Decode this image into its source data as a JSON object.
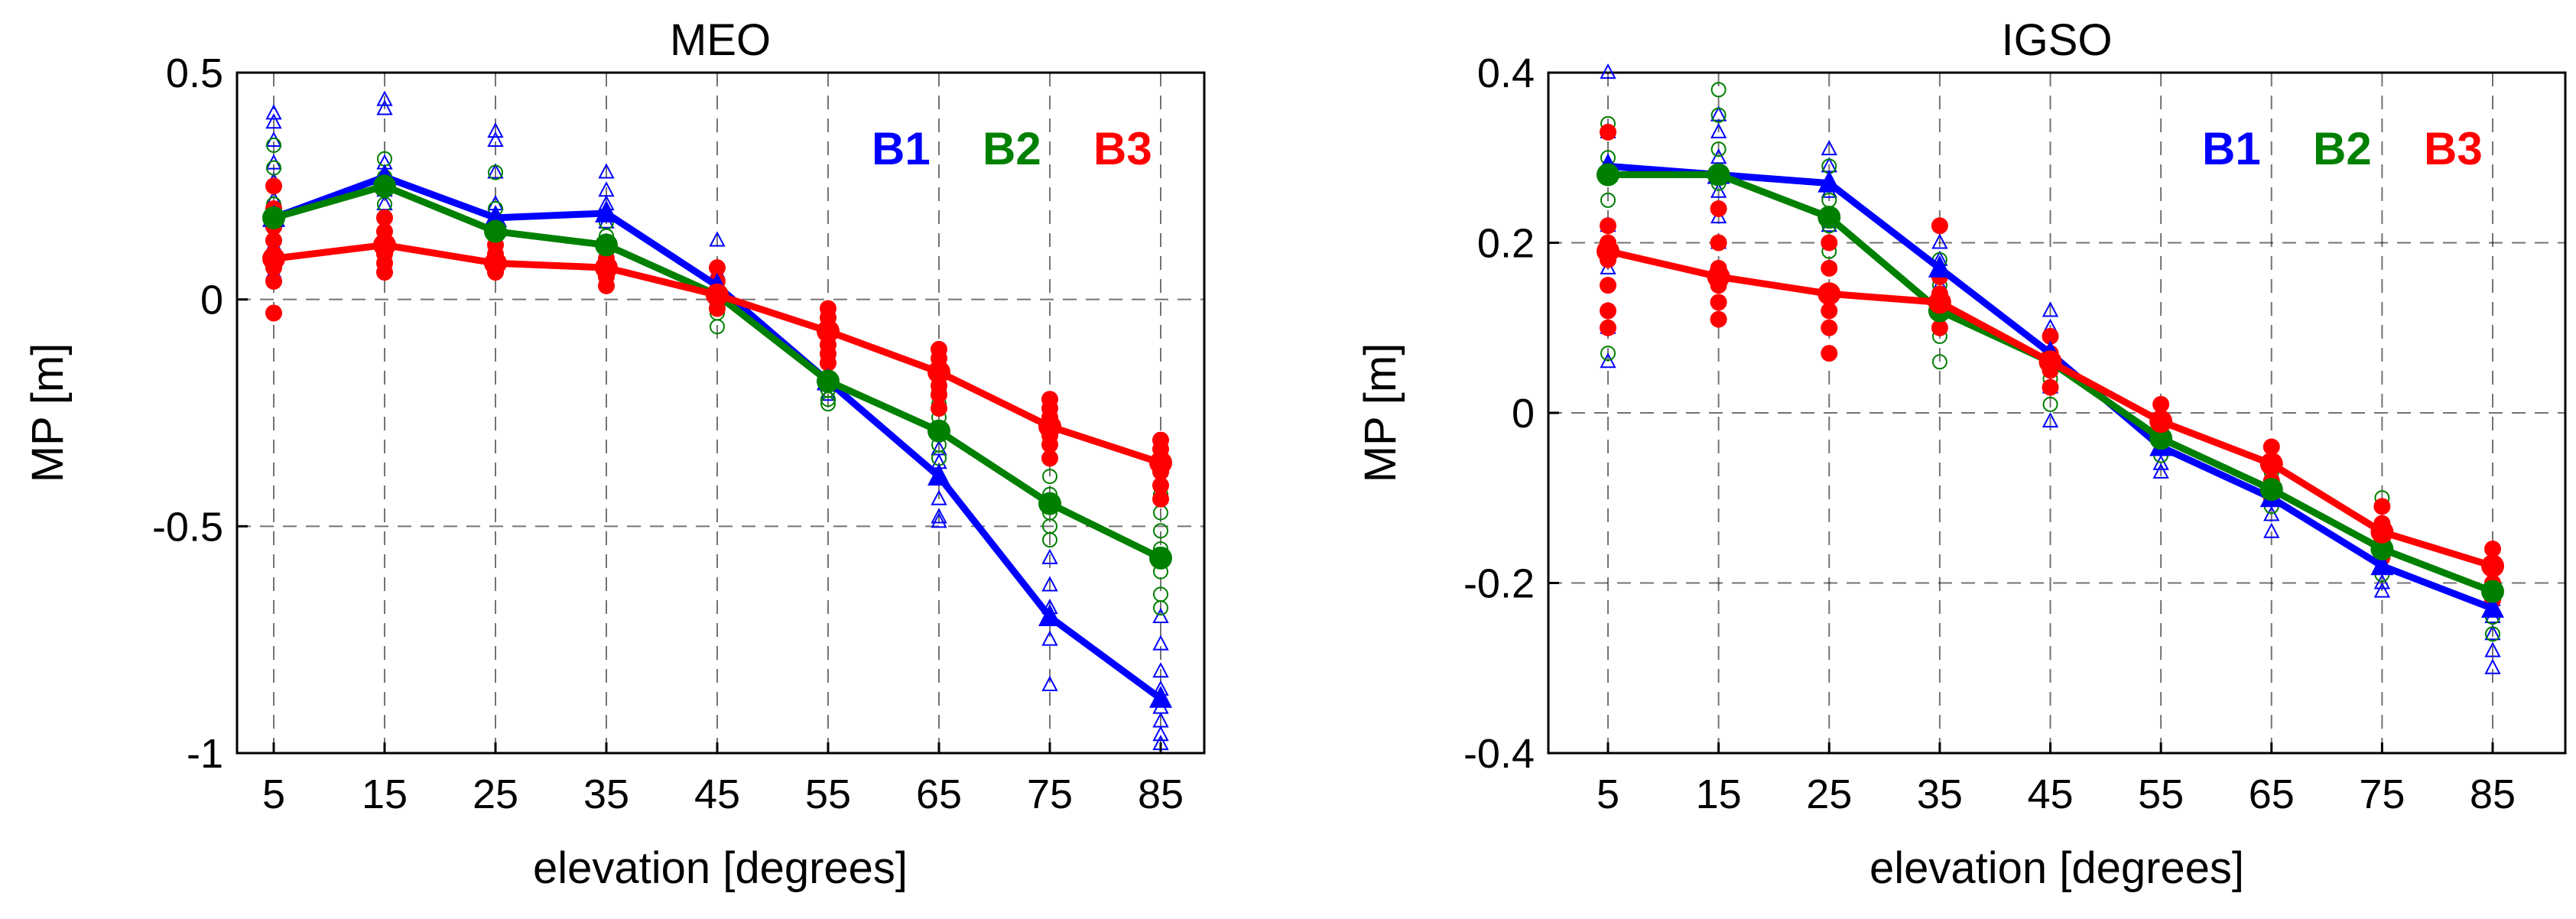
{
  "figure": {
    "background": "#ffffff"
  },
  "chart_data": [
    {
      "type": "line",
      "title": "MEO",
      "xlabel": "elevation [degrees]",
      "ylabel": "MP [m]",
      "x": [
        5,
        15,
        25,
        35,
        45,
        55,
        65,
        75,
        85
      ],
      "xticks": [
        "5",
        "15",
        "25",
        "35",
        "45",
        "55",
        "65",
        "75",
        "85"
      ],
      "ylim": [
        -1,
        0.5
      ],
      "yticks": [
        -1,
        -0.5,
        0,
        0.5
      ],
      "ytick_labels": [
        "-1",
        "-0.5",
        "0",
        "0.5"
      ],
      "grid": true,
      "legend_position": "top-right",
      "series": [
        {
          "name": "B1",
          "color": "#0000ff",
          "marker": "triangle",
          "values": [
            0.18,
            0.27,
            0.18,
            0.19,
            0.03,
            -0.18,
            -0.39,
            -0.7,
            -0.88
          ],
          "scatter": [
            [
              0.41,
              0.39,
              0.35,
              0.3,
              0.26,
              0.22,
              0.18,
              0.12,
              0.06
            ],
            [
              0.44,
              0.42,
              0.3,
              0.27,
              0.24,
              0.21
            ],
            [
              0.37,
              0.35,
              0.28,
              0.21,
              0.16
            ],
            [
              0.28,
              0.24,
              0.21,
              0.17
            ],
            [
              0.13,
              0.06,
              0.03,
              0.0
            ],
            [
              -0.13,
              -0.16,
              -0.19,
              -0.21
            ],
            [
              -0.33,
              -0.36,
              -0.39,
              -0.44,
              -0.48,
              -0.49
            ],
            [
              -0.57,
              -0.63,
              -0.68,
              -0.75,
              -0.85
            ],
            [
              -0.7,
              -0.76,
              -0.82,
              -0.86,
              -0.9,
              -0.93,
              -0.96,
              -0.98
            ]
          ]
        },
        {
          "name": "B2",
          "color": "#008000",
          "marker": "circle",
          "values": [
            0.18,
            0.25,
            0.15,
            0.12,
            0.01,
            -0.18,
            -0.29,
            -0.45,
            -0.57
          ],
          "scatter": [
            [
              0.34,
              0.29,
              0.25,
              0.21,
              0.18,
              0.13,
              0.08
            ],
            [
              0.31,
              0.27,
              0.24,
              0.21
            ],
            [
              0.28,
              0.2,
              0.15,
              0.12
            ],
            [
              0.17,
              0.14,
              0.11,
              0.08
            ],
            [
              0.02,
              -0.01,
              -0.03,
              -0.06
            ],
            [
              -0.14,
              -0.17,
              -0.2,
              -0.22,
              -0.23
            ],
            [
              -0.2,
              -0.23,
              -0.26,
              -0.29,
              -0.32,
              -0.35
            ],
            [
              -0.35,
              -0.39,
              -0.43,
              -0.47,
              -0.5,
              -0.53
            ],
            [
              -0.43,
              -0.47,
              -0.51,
              -0.55,
              -0.6,
              -0.65,
              -0.68
            ]
          ]
        },
        {
          "name": "B3",
          "color": "#ff0000",
          "marker": "dot",
          "values": [
            0.09,
            0.12,
            0.08,
            0.07,
            0.01,
            -0.07,
            -0.16,
            -0.28,
            -0.36
          ],
          "scatter": [
            [
              0.25,
              0.2,
              0.16,
              0.13,
              0.1,
              0.07,
              0.04,
              -0.03
            ],
            [
              0.18,
              0.15,
              0.12,
              0.1,
              0.08,
              0.06
            ],
            [
              0.12,
              0.1,
              0.08,
              0.06
            ],
            [
              0.11,
              0.09,
              0.07,
              0.05,
              0.03
            ],
            [
              0.07,
              0.04,
              0.01,
              -0.02
            ],
            [
              -0.02,
              -0.04,
              -0.06,
              -0.08,
              -0.1,
              -0.12,
              -0.14
            ],
            [
              -0.11,
              -0.13,
              -0.15,
              -0.17,
              -0.19,
              -0.21,
              -0.24
            ],
            [
              -0.22,
              -0.24,
              -0.26,
              -0.28,
              -0.3,
              -0.32,
              -0.35
            ],
            [
              -0.31,
              -0.33,
              -0.36,
              -0.38,
              -0.41,
              -0.44
            ]
          ]
        }
      ]
    },
    {
      "type": "line",
      "title": "IGSO",
      "xlabel": "elevation [degrees]",
      "ylabel": "MP [m]",
      "x": [
        5,
        15,
        25,
        35,
        45,
        55,
        65,
        75,
        85
      ],
      "xticks": [
        "5",
        "15",
        "25",
        "35",
        "45",
        "55",
        "65",
        "75",
        "85"
      ],
      "ylim": [
        -0.4,
        0.4
      ],
      "yticks": [
        -0.4,
        -0.2,
        0,
        0.2,
        0.4
      ],
      "ytick_labels": [
        "-0.4",
        "-0.2",
        "0",
        "0.2",
        "0.4"
      ],
      "grid": true,
      "legend_position": "top-right",
      "series": [
        {
          "name": "B1",
          "color": "#0000ff",
          "marker": "triangle",
          "values": [
            0.29,
            0.28,
            0.27,
            0.17,
            0.07,
            -0.04,
            -0.1,
            -0.18,
            -0.23
          ],
          "scatter": [
            [
              0.4,
              0.33,
              0.28,
              0.22,
              0.17,
              0.1,
              0.06
            ],
            [
              0.35,
              0.33,
              0.3,
              0.26,
              0.23,
              0.2
            ],
            [
              0.31,
              0.29,
              0.26,
              0.22
            ],
            [
              0.2,
              0.18,
              0.15,
              0.12
            ],
            [
              0.12,
              0.1,
              0.06,
              0.03,
              -0.01
            ],
            [
              -0.02,
              -0.04,
              -0.06,
              -0.07
            ],
            [
              -0.08,
              -0.1,
              -0.12,
              -0.14
            ],
            [
              -0.16,
              -0.18,
              -0.2,
              -0.21
            ],
            [
              -0.22,
              -0.24,
              -0.26,
              -0.28,
              -0.3
            ]
          ]
        },
        {
          "name": "B2",
          "color": "#008000",
          "marker": "circle",
          "values": [
            0.28,
            0.28,
            0.23,
            0.12,
            0.06,
            -0.03,
            -0.09,
            -0.16,
            -0.21
          ],
          "scatter": [
            [
              0.34,
              0.3,
              0.25,
              0.2,
              0.15,
              0.07
            ],
            [
              0.38,
              0.35,
              0.31,
              0.27,
              0.24
            ],
            [
              0.29,
              0.25,
              0.22,
              0.19
            ],
            [
              0.18,
              0.15,
              0.12,
              0.09,
              0.06
            ],
            [
              0.09,
              0.07,
              0.04,
              0.01
            ],
            [
              -0.01,
              -0.03,
              -0.05
            ],
            [
              -0.07,
              -0.09,
              -0.11
            ],
            [
              -0.1,
              -0.13,
              -0.16,
              -0.19
            ],
            [
              -0.2,
              -0.22,
              -0.24,
              -0.26
            ]
          ]
        },
        {
          "name": "B3",
          "color": "#ff0000",
          "marker": "dot",
          "values": [
            0.19,
            0.16,
            0.14,
            0.13,
            0.06,
            -0.01,
            -0.06,
            -0.14,
            -0.18
          ],
          "scatter": [
            [
              0.33,
              0.28,
              0.22,
              0.2,
              0.18,
              0.15,
              0.12,
              0.1
            ],
            [
              0.28,
              0.24,
              0.2,
              0.17,
              0.15,
              0.13,
              0.11
            ],
            [
              0.23,
              0.2,
              0.17,
              0.14,
              0.12,
              0.1,
              0.07
            ],
            [
              0.22,
              0.16,
              0.14,
              0.12,
              0.1
            ],
            [
              0.09,
              0.07,
              0.05,
              0.03
            ],
            [
              0.01,
              -0.01,
              -0.03
            ],
            [
              -0.04,
              -0.06,
              -0.08,
              -0.1
            ],
            [
              -0.11,
              -0.13,
              -0.15,
              -0.17
            ],
            [
              -0.16,
              -0.18,
              -0.2,
              -0.22
            ]
          ]
        }
      ]
    }
  ]
}
